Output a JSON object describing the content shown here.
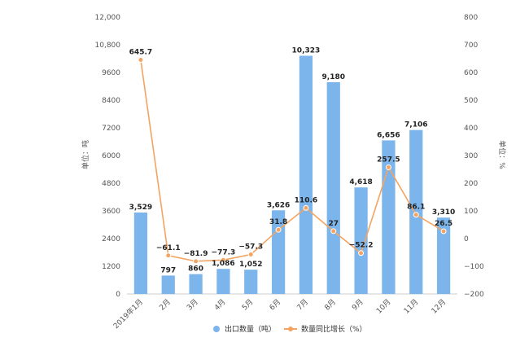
{
  "chart_data": {
    "type": "bar+line",
    "categories": [
      "2019年1月",
      "2月",
      "3月",
      "4月",
      "5月",
      "6月",
      "7月",
      "8月",
      "9月",
      "10月",
      "11月",
      "12月"
    ],
    "series": [
      {
        "name": "出口数量（吨）",
        "type": "bar",
        "axis": "left",
        "color": "#7cb5ec",
        "values": [
          3529,
          797,
          860,
          1086,
          1052,
          3626,
          10323,
          9180,
          4618,
          6656,
          7106,
          3310
        ],
        "labels": [
          "3,529",
          "797",
          "860",
          "1,086",
          "1,052",
          "3,626",
          "10,323",
          "9,180",
          "4,618",
          "6,656",
          "7,106",
          "3,310"
        ]
      },
      {
        "name": "数量同比增长（%）",
        "type": "line",
        "axis": "right",
        "color": "#f4a460",
        "values": [
          645.7,
          -61.1,
          -81.9,
          -77.3,
          -57.3,
          31.8,
          110.6,
          27,
          -52.2,
          257.5,
          86.1,
          26.5
        ],
        "labels": [
          "645.7",
          "−61.1",
          "−81.9",
          "−77.3",
          "−57.3",
          "31.8",
          "110.6",
          "27",
          "−52.2",
          "257.5",
          "86.1",
          "26.5"
        ]
      }
    ],
    "left_axis": {
      "label": "单位：吨",
      "range": [
        0,
        12000
      ],
      "ticks": [
        0,
        1200,
        2400,
        3600,
        4800,
        6000,
        7200,
        8400,
        9600,
        10800,
        12000
      ],
      "tick_labels": [
        "0",
        "1200",
        "2400",
        "3600",
        "4800",
        "6000",
        "7200",
        "8400",
        "9600",
        "10,800",
        "12,000"
      ]
    },
    "right_axis": {
      "label": "单位：%",
      "range": [
        -200,
        800
      ],
      "ticks": [
        -200,
        -100,
        0,
        100,
        200,
        300,
        400,
        500,
        600,
        700,
        800
      ],
      "tick_labels": [
        "−200",
        "−100",
        "0",
        "100",
        "200",
        "300",
        "400",
        "500",
        "600",
        "700",
        "800"
      ]
    },
    "legend_position": "bottom-center",
    "grid": false
  }
}
